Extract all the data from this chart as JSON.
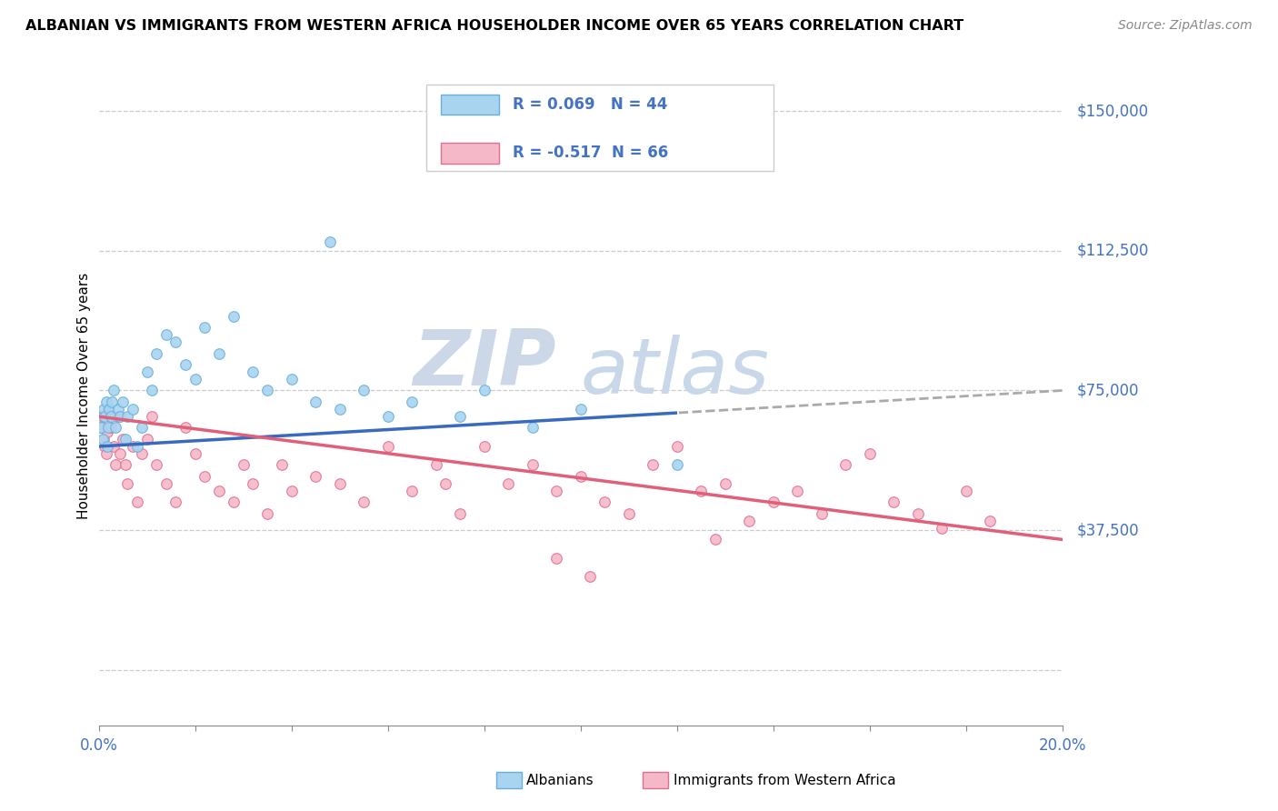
{
  "title": "ALBANIAN VS IMMIGRANTS FROM WESTERN AFRICA HOUSEHOLDER INCOME OVER 65 YEARS CORRELATION CHART",
  "source": "Source: ZipAtlas.com",
  "ylabel": "Householder Income Over 65 years",
  "xlim": [
    0.0,
    20.0
  ],
  "ylim": [
    -15000,
    162000
  ],
  "ytick_vals": [
    0,
    37500,
    75000,
    112500,
    150000
  ],
  "ytick_labels": [
    "",
    "$37,500",
    "$75,000",
    "$112,500",
    "$150,000"
  ],
  "color_albanian_fill": "#a8d4f0",
  "color_albanian_edge": "#6aaedd",
  "color_albanian_line": "#3a6abf",
  "color_africa_fill": "#f5b8c8",
  "color_africa_edge": "#e07090",
  "color_africa_line": "#e0607a",
  "color_blue_text": "#4472C4",
  "color_dash": "#aaaaaa",
  "legend_label1": "Albanians",
  "legend_label2": "Immigrants from Western Africa",
  "n_albanian": 44,
  "n_africa": 66,
  "r_albanian": 0.069,
  "r_africa": -0.517,
  "watermark_zip_color": "#ccd8e8",
  "watermark_atlas_color": "#c8d8e8"
}
